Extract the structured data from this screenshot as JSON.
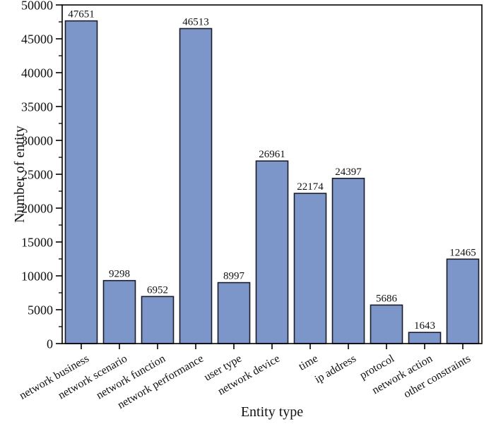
{
  "chart_data": {
    "type": "bar",
    "title": "",
    "xlabel": "Entity type",
    "ylabel": "Number of entity",
    "categories": [
      "network business",
      "network scenario",
      "network function",
      "network performance",
      "user type",
      "network device",
      "time",
      "ip address",
      "protocol",
      "network action",
      "other constraints"
    ],
    "values": [
      47651,
      9298,
      6952,
      46513,
      8997,
      26961,
      22174,
      24397,
      5686,
      1643,
      12465
    ],
    "value_labels": [
      "47651",
      "9298",
      "6952",
      "46513",
      "8997",
      "26961",
      "22174",
      "24397",
      "5686",
      "1643",
      "12465"
    ],
    "ylim": [
      0,
      50000
    ],
    "ytick_step": 5000,
    "ytick_minor_step": 2500,
    "ytick_labels": [
      "0",
      "5000",
      "10000",
      "15000",
      "20000",
      "25000",
      "30000",
      "35000",
      "40000",
      "45000",
      "50000"
    ],
    "xtick_rotation_deg": 30,
    "grid": false,
    "legend": null,
    "colors": {
      "bar_fill": "#7C96C9",
      "bar_edge": "#1c1c28",
      "axis": "#000000",
      "text": "#111111",
      "background": "#ffffff"
    }
  }
}
